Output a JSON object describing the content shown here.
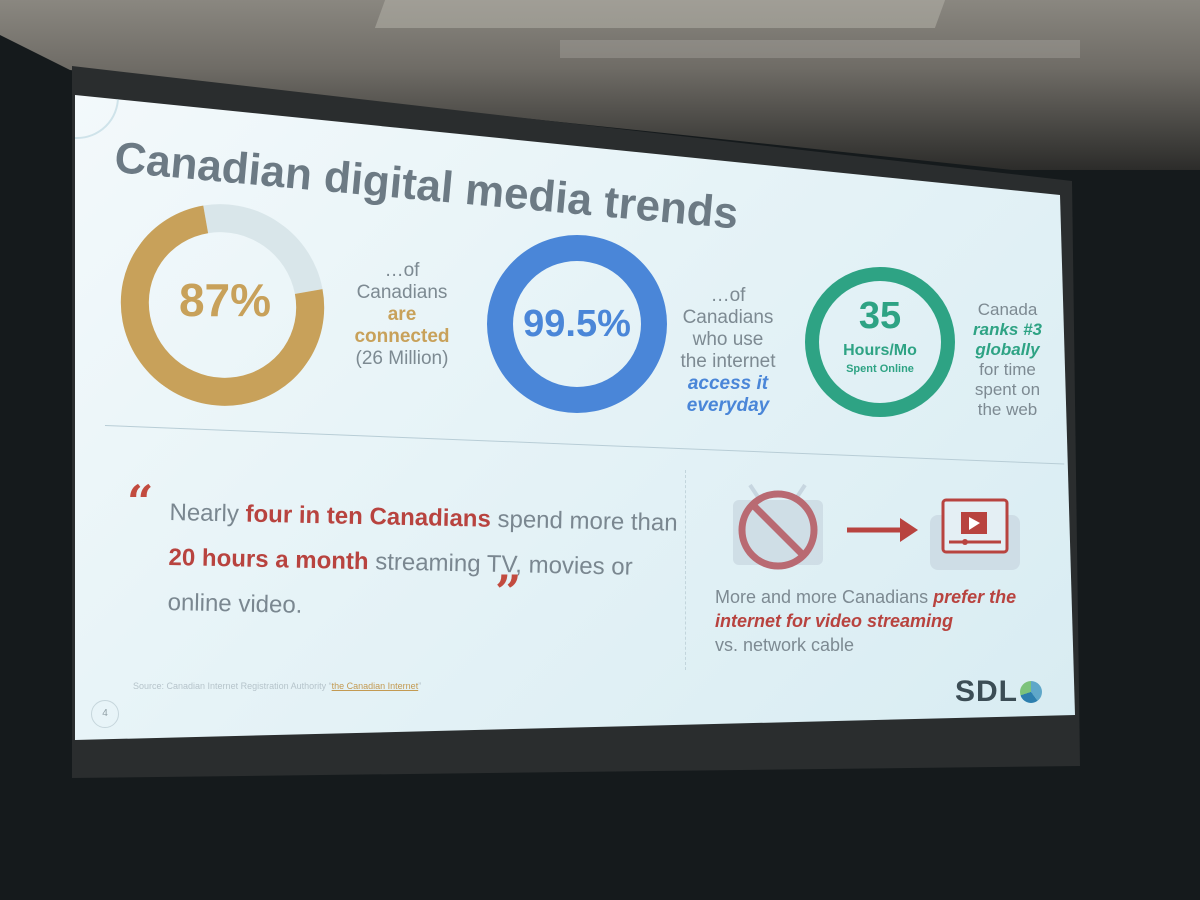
{
  "slide": {
    "title": "Canadian digital media trends",
    "stats": [
      {
        "value": "87%",
        "ring_fill": 0.87,
        "color": "#c8a15a",
        "caption_lines": [
          "…of",
          "Canadians"
        ],
        "caption_highlight": [
          "are",
          "connected"
        ],
        "caption_tail": "(26 Million)"
      },
      {
        "value": "99.5%",
        "ring_fill": 0.995,
        "color": "#4a86d8",
        "caption_lines": [
          "…of",
          "Canadians",
          "who use",
          "the internet"
        ],
        "caption_highlight": [
          "access it",
          "everyday"
        ]
      },
      {
        "value": "35",
        "value_sub": "Hours/Mo",
        "value_sub2": "Spent Online",
        "color": "#2ea384",
        "caption_top": "Canada",
        "caption_highlight": [
          "ranks #3",
          "globally"
        ],
        "caption_lines": [
          "for time",
          "spent on",
          "the web"
        ]
      }
    ],
    "quote": {
      "open_mark": "“",
      "close_mark": "”",
      "part1": "Nearly ",
      "red1": "four in ten Canadians",
      "part2": " spend more than ",
      "red2": "20 hours a month",
      "part3": " streaming TV, movies or online video."
    },
    "streaming": {
      "caption_pre": "More and more Canadians ",
      "caption_highlight": "prefer the internet for video streaming",
      "caption_post": "vs. network cable",
      "icons": [
        "no-tv-icon",
        "arrow-right-icon",
        "video-player-icon"
      ]
    },
    "source_label": "Source: Canadian Internet Registration Authority",
    "source_link": "the Canadian Internet",
    "page_number": "4",
    "logo": "SDL"
  }
}
